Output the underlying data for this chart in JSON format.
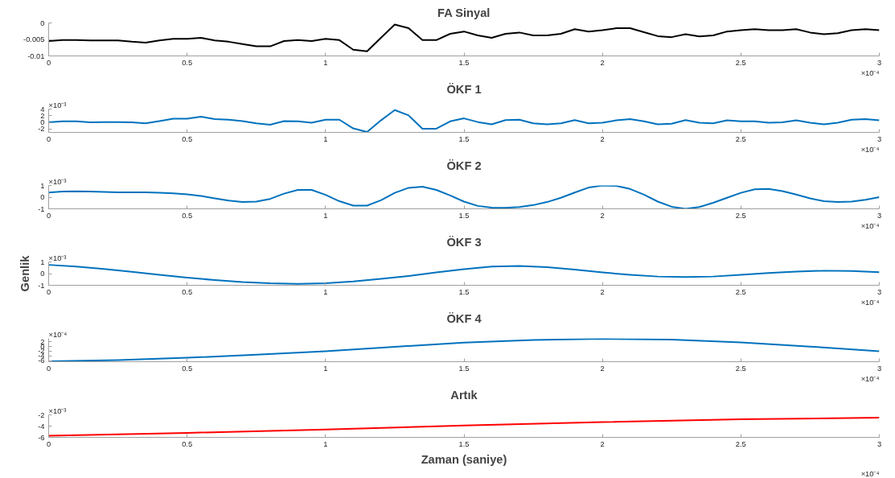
{
  "chart_data": [
    {
      "type": "line",
      "title": "FA Sinyal",
      "annotations": [
        "×10⁻⁴"
      ],
      "x": [
        0,
        0.05,
        0.1,
        0.15,
        0.2,
        0.25,
        0.3,
        0.35,
        0.4,
        0.45,
        0.5,
        0.55,
        0.6,
        0.65,
        0.7,
        0.75,
        0.8,
        0.85,
        0.9,
        0.95,
        1.0,
        1.05,
        1.1,
        1.15,
        1.2,
        1.25,
        1.3,
        1.35,
        1.4,
        1.45,
        1.5,
        1.55,
        1.6,
        1.65,
        1.7,
        1.75,
        1.8,
        1.85,
        1.9,
        1.95,
        2.0,
        2.05,
        2.1,
        2.15,
        2.2,
        2.25,
        2.3,
        2.35,
        2.4,
        2.45,
        2.5,
        2.55,
        2.6,
        2.65,
        2.7,
        2.75,
        2.8,
        2.85,
        2.9,
        2.95,
        3.0
      ],
      "series": [
        {
          "color": "#000000",
          "values": [
            -0.0055,
            -0.0052,
            -0.0052,
            -0.0053,
            -0.0053,
            -0.0053,
            -0.0057,
            -0.006,
            -0.0053,
            -0.0048,
            -0.0048,
            -0.0045,
            -0.0053,
            -0.0057,
            -0.0064,
            -0.0071,
            -0.0071,
            -0.0055,
            -0.0052,
            -0.0055,
            -0.0048,
            -0.0052,
            -0.0081,
            -0.0086,
            -0.0045,
            -0.0005,
            -0.0016,
            -0.0052,
            -0.0052,
            -0.0033,
            -0.0026,
            -0.0038,
            -0.0045,
            -0.0033,
            -0.0029,
            -0.0038,
            -0.0038,
            -0.0033,
            -0.0019,
            -0.0026,
            -0.0022,
            -0.0016,
            -0.0016,
            -0.0028,
            -0.004,
            -0.0043,
            -0.0034,
            -0.0041,
            -0.0038,
            -0.0026,
            -0.0022,
            -0.0019,
            -0.0022,
            -0.0022,
            -0.0019,
            -0.0029,
            -0.0034,
            -0.0031,
            -0.0022,
            -0.0019,
            -0.0022
          ]
        }
      ],
      "xlim": [
        0,
        3
      ],
      "xticks": [
        0,
        0.5,
        1,
        1.5,
        2,
        2.5,
        3
      ],
      "ylim": [
        -0.01,
        0
      ],
      "yticks": [
        -0.01,
        -0.005,
        0
      ],
      "grid": false
    },
    {
      "type": "line",
      "title": "ÖKF 1",
      "annotations": [
        "×10⁻³",
        "×10⁻⁴"
      ],
      "x": [
        0,
        0.05,
        0.1,
        0.15,
        0.2,
        0.25,
        0.3,
        0.35,
        0.4,
        0.45,
        0.5,
        0.55,
        0.6,
        0.65,
        0.7,
        0.75,
        0.8,
        0.85,
        0.9,
        0.95,
        1.0,
        1.05,
        1.1,
        1.15,
        1.2,
        1.25,
        1.3,
        1.35,
        1.4,
        1.45,
        1.5,
        1.55,
        1.6,
        1.65,
        1.7,
        1.75,
        1.8,
        1.85,
        1.9,
        1.95,
        2.0,
        2.05,
        2.1,
        2.15,
        2.2,
        2.25,
        2.3,
        2.35,
        2.4,
        2.45,
        2.5,
        2.55,
        2.6,
        2.65,
        2.7,
        2.75,
        2.8,
        2.85,
        2.9,
        2.95,
        3.0
      ],
      "series": [
        {
          "color": "#0072bd",
          "values": [
            0,
            0.3,
            0.3,
            0,
            0.1,
            0.1,
            0,
            -0.3,
            0.4,
            1.1,
            1.1,
            1.7,
            1.0,
            0.8,
            0.4,
            -0.3,
            -0.7,
            0.4,
            0.3,
            -0.1,
            0.8,
            0.8,
            -1.8,
            -2.9,
            0.6,
            3.7,
            2.1,
            -1.9,
            -1.9,
            0.3,
            1.2,
            0.1,
            -0.6,
            0.7,
            0.8,
            -0.3,
            -0.6,
            -0.3,
            0.7,
            -0.3,
            -0.1,
            0.6,
            1.0,
            0.3,
            -0.6,
            -0.4,
            0.7,
            -0.1,
            -0.3,
            0.6,
            0.3,
            0.3,
            -0.1,
            0,
            0.6,
            -0.1,
            -0.6,
            -0.1,
            0.8,
            1.0,
            0.6
          ]
        }
      ],
      "xlim": [
        0,
        3
      ],
      "xticks": [
        0,
        0.5,
        1,
        1.5,
        2,
        2.5,
        3
      ],
      "ylim": [
        -3,
        4
      ],
      "yticks": [
        -2,
        0,
        2,
        4
      ],
      "grid": false
    },
    {
      "type": "line",
      "title": "ÖKF 2",
      "annotations": [
        "×10⁻³",
        "×10⁻⁴"
      ],
      "x": [
        0,
        0.05,
        0.1,
        0.15,
        0.2,
        0.25,
        0.3,
        0.35,
        0.4,
        0.45,
        0.5,
        0.55,
        0.6,
        0.65,
        0.7,
        0.75,
        0.8,
        0.85,
        0.9,
        0.95,
        1.0,
        1.05,
        1.1,
        1.15,
        1.2,
        1.25,
        1.3,
        1.35,
        1.4,
        1.45,
        1.5,
        1.55,
        1.6,
        1.65,
        1.7,
        1.75,
        1.8,
        1.85,
        1.9,
        1.95,
        2.0,
        2.05,
        2.1,
        2.15,
        2.2,
        2.25,
        2.3,
        2.35,
        2.4,
        2.45,
        2.5,
        2.55,
        2.6,
        2.65,
        2.7,
        2.75,
        2.8,
        2.85,
        2.9,
        2.95,
        3.0
      ],
      "series": [
        {
          "color": "#0072bd",
          "values": [
            0.4,
            0.48,
            0.5,
            0.48,
            0.45,
            0.42,
            0.42,
            0.42,
            0.38,
            0.32,
            0.24,
            0.1,
            -0.1,
            -0.3,
            -0.42,
            -0.38,
            -0.15,
            0.3,
            0.62,
            0.62,
            0.2,
            -0.35,
            -0.72,
            -0.72,
            -0.27,
            0.37,
            0.8,
            0.9,
            0.62,
            0.15,
            -0.38,
            -0.75,
            -0.9,
            -0.92,
            -0.85,
            -0.68,
            -0.42,
            -0.05,
            0.4,
            0.82,
            1.0,
            0.97,
            0.7,
            0.22,
            -0.38,
            -0.82,
            -1.0,
            -0.85,
            -0.48,
            -0.05,
            0.37,
            0.67,
            0.7,
            0.52,
            0.22,
            -0.1,
            -0.35,
            -0.42,
            -0.38,
            -0.22,
            0
          ]
        }
      ],
      "xlim": [
        0,
        3
      ],
      "xticks": [
        0,
        0.5,
        1,
        1.5,
        2,
        2.5,
        3
      ],
      "ylim": [
        -1,
        1
      ],
      "yticks": [
        -1,
        0,
        1
      ],
      "grid": false
    },
    {
      "type": "line",
      "title": "ÖKF 3",
      "ylabel": "Genlik",
      "annotations": [
        "×10⁻³",
        "×10⁻⁴"
      ],
      "x": [
        0,
        0.1,
        0.2,
        0.3,
        0.4,
        0.5,
        0.6,
        0.7,
        0.8,
        0.9,
        1.0,
        1.1,
        1.2,
        1.3,
        1.4,
        1.5,
        1.6,
        1.7,
        1.8,
        1.9,
        2.0,
        2.1,
        2.2,
        2.3,
        2.4,
        2.5,
        2.6,
        2.7,
        2.8,
        2.9,
        3.0
      ],
      "series": [
        {
          "color": "#0072bd",
          "values": [
            0.75,
            0.6,
            0.4,
            0.15,
            -0.1,
            -0.35,
            -0.55,
            -0.72,
            -0.83,
            -0.88,
            -0.83,
            -0.68,
            -0.45,
            -0.2,
            0.1,
            0.38,
            0.6,
            0.65,
            0.55,
            0.35,
            0.1,
            -0.1,
            -0.25,
            -0.3,
            -0.25,
            -0.1,
            0.05,
            0.18,
            0.25,
            0.22,
            0.12
          ]
        }
      ],
      "xlim": [
        0,
        3
      ],
      "xticks": [
        0,
        0.5,
        1,
        1.5,
        2,
        2.5,
        3
      ],
      "ylim": [
        -1,
        1
      ],
      "yticks": [
        -1,
        0,
        1
      ],
      "grid": false
    },
    {
      "type": "line",
      "title": "ÖKF 4",
      "annotations": [
        "×10⁻⁴",
        "×10⁻⁴"
      ],
      "x": [
        0,
        0.25,
        0.5,
        0.75,
        1.0,
        1.25,
        1.5,
        1.75,
        2.0,
        2.25,
        2.5,
        2.75,
        3.0
      ],
      "series": [
        {
          "color": "#0072bd",
          "values": [
            -6.3,
            -5.8,
            -4.8,
            -3.5,
            -2.0,
            -0.1,
            1.7,
            2.8,
            3.3,
            3.0,
            1.8,
            0.0,
            -2.0
          ]
        }
      ],
      "xlim": [
        0,
        3
      ],
      "xticks": [
        0,
        0.5,
        1,
        1.5,
        2,
        2.5,
        3
      ],
      "ylim": [
        -6.5,
        3.5
      ],
      "yticks": [
        -6,
        -4,
        -2,
        0,
        2
      ],
      "grid": false
    },
    {
      "type": "line",
      "title": "Artık",
      "xlabel": "Zaman (saniye)",
      "annotations": [
        "×10⁻³",
        "×10⁻⁴"
      ],
      "x": [
        0,
        0.5,
        1.0,
        1.5,
        2.0,
        2.5,
        3.0
      ],
      "series": [
        {
          "color": "#ff0000",
          "values": [
            -5.7,
            -5.2,
            -4.6,
            -3.9,
            -3.3,
            -2.8,
            -2.5
          ]
        }
      ],
      "xlim": [
        0,
        3
      ],
      "xticks": [
        0,
        0.5,
        1,
        1.5,
        2,
        2.5,
        3
      ],
      "ylim": [
        -6,
        -2
      ],
      "yticks": [
        -6,
        -4,
        -2
      ],
      "grid": false
    }
  ]
}
